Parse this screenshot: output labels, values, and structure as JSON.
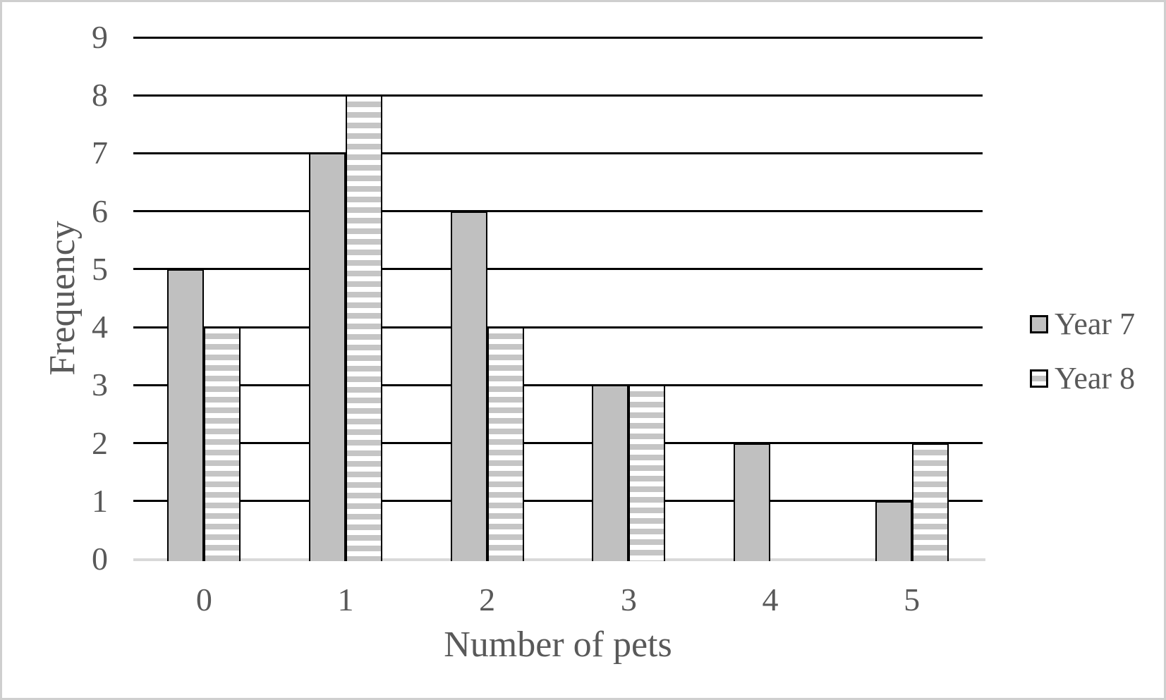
{
  "chart_data": {
    "type": "bar",
    "categories": [
      "0",
      "1",
      "2",
      "3",
      "4",
      "5"
    ],
    "series": [
      {
        "name": "Year 7",
        "pattern": "solid",
        "values": [
          5,
          7,
          6,
          3,
          2,
          1
        ]
      },
      {
        "name": "Year 8",
        "pattern": "striped",
        "values": [
          4,
          8,
          4,
          3,
          0,
          2
        ]
      }
    ],
    "title": "",
    "xlabel": "Number of pets",
    "ylabel": "Frequency",
    "ylim": [
      0,
      9
    ],
    "ytick_step": 1,
    "grid": "horizontal-black",
    "legend_position": "right-middle"
  },
  "colors": {
    "bar_fill": "#c0c0c0",
    "stripe_gray": "#c5c5c5",
    "stripe_white": "#ffffff",
    "bar_border": "#000000",
    "gridline": "#000000",
    "axis_baseline": "#d9d9d9",
    "text": "#595959",
    "frame": "#cfcfcf",
    "background": "#ffffff"
  }
}
